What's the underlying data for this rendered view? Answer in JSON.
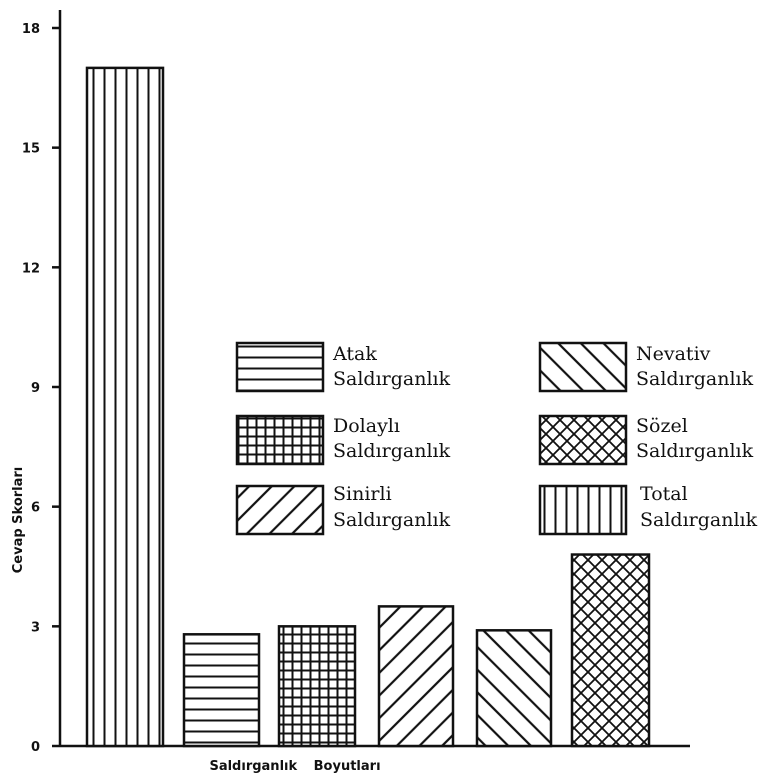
{
  "chart_data": {
    "type": "bar",
    "xlabel": "Saldırganlık Boyutları",
    "ylabel": "Cevap Skorları",
    "ylim": [
      0,
      18
    ],
    "yticks": [
      0,
      3,
      6,
      9,
      12,
      15,
      18
    ],
    "ytick_labels": [
      "0",
      "3",
      "6",
      "9",
      "12",
      "15",
      "18"
    ],
    "grid": false,
    "legend_position": "center-right",
    "series": [
      {
        "name": "Total Saldırganlık",
        "value": 17,
        "pattern": "vertical-lines"
      },
      {
        "name": "Atak Saldırganlık",
        "value": 2.8,
        "pattern": "horizontal-lines"
      },
      {
        "name": "Dolaylı Saldırganlık",
        "value": 3,
        "pattern": "grid"
      },
      {
        "name": "Sinirli Saldırganlık",
        "value": 3.5,
        "pattern": "back-diagonal"
      },
      {
        "name": "Nevativ Saldırganlık",
        "value": 2.9,
        "pattern": "forward-diagonal"
      },
      {
        "name": "Sözel Saldırganlık",
        "value": 4.8,
        "pattern": "cross-hatch"
      }
    ],
    "legend": [
      {
        "line1": "Atak",
        "line2": "Saldırganlık",
        "pattern": "horizontal-lines"
      },
      {
        "line1": "Nevativ",
        "line2": "Saldırganlık",
        "pattern": "forward-diagonal"
      },
      {
        "line1": "Dolaylı",
        "line2": "Saldırganlık",
        "pattern": "grid"
      },
      {
        "line1": "Sözel",
        "line2": "Saldırganlık",
        "pattern": "cross-hatch"
      },
      {
        "line1": "Sinirli",
        "line2": "Saldırganlık",
        "pattern": "back-diagonal"
      },
      {
        "line1": "Total",
        "line2": "Saldırganlık",
        "pattern": "vertical-lines"
      }
    ],
    "colors": {
      "ink": "#111111",
      "background": "#ffffff"
    }
  }
}
